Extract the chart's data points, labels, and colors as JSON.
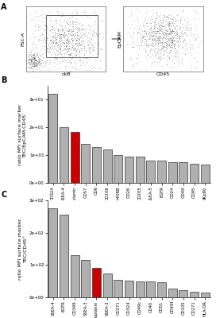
{
  "panel_b": {
    "labels": [
      "CD324",
      "SSEA-4",
      "podoplanin",
      "CD57",
      "CD6",
      "CD106",
      "CD45RB",
      "CD26",
      "CD205",
      "SSEA-5",
      "EGFR",
      "CD24",
      "CD49",
      "CD95",
      "NKp80"
    ],
    "values": [
      32,
      20,
      18.5,
      14,
      13,
      12,
      10,
      9.5,
      9.5,
      8,
      8,
      7.5,
      7.5,
      7,
      6.5
    ],
    "red_index": 2,
    "ylabel": "ratio MFI surface marker\nTEC/EpCAM·CD45⁻",
    "yticks": [
      0,
      10,
      20,
      30
    ],
    "ytick_labels": [
      "0e+00",
      "1e+01",
      "2e+01",
      "3e+01"
    ],
    "ymax": 35
  },
  "panel_c": {
    "labels": [
      "SSEA-4",
      "EGFR",
      "CD349",
      "SSEA-3",
      "podoplanin",
      "SSEA-3",
      "CD271",
      "CD324",
      "CD49c",
      "CD40",
      "CD51",
      "CD49f",
      "CD105",
      "CD271",
      "HLA-DR"
    ],
    "values": [
      275,
      255,
      130,
      115,
      90,
      75,
      55,
      52,
      50,
      48,
      46,
      28,
      22,
      18,
      15
    ],
    "red_index": 4,
    "ylabel": "ratio MFI surface marker\nTEC/CD45⁺",
    "yticks": [
      0,
      100,
      200,
      300
    ],
    "ytick_labels": [
      "0e+00",
      "1e+02",
      "2e+02",
      "3e+02"
    ],
    "ymax": 300
  },
  "bar_color_normal": "#b0b0b0",
  "bar_color_red": "#cc0000",
  "bar_edge_color": "#333333",
  "background_color": "#ffffff"
}
